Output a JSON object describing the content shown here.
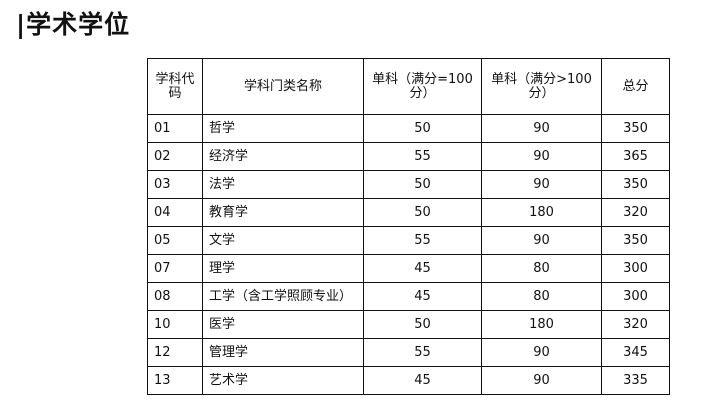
{
  "title": "|学术学位",
  "table": {
    "headers": [
      "学科代码",
      "学科门类名称",
      "单科（满分=100分）",
      "单科（满分>100分）",
      "总分"
    ],
    "rows": [
      [
        "01",
        "哲学",
        "50",
        "90",
        "350"
      ],
      [
        "02",
        "经济学",
        "55",
        "90",
        "365"
      ],
      [
        "03",
        "法学",
        "50",
        "90",
        "350"
      ],
      [
        "04",
        "教育学",
        "50",
        "180",
        "320"
      ],
      [
        "05",
        "文学",
        "55",
        "90",
        "350"
      ],
      [
        "07",
        "理学",
        "45",
        "80",
        "300"
      ],
      [
        "08",
        "工学（含工学照顾专业）",
        "45",
        "80",
        "300"
      ],
      [
        "10",
        "医学",
        "50",
        "180",
        "320"
      ],
      [
        "12",
        "管理学",
        "55",
        "90",
        "345"
      ],
      [
        "13",
        "艺术学",
        "45",
        "90",
        "335"
      ]
    ]
  }
}
